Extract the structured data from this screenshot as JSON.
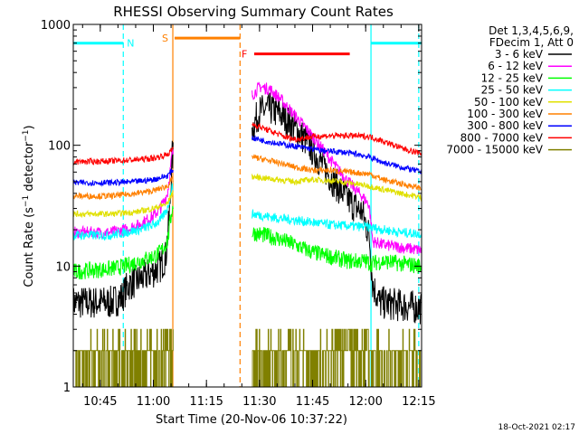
{
  "chart_data": {
    "type": "line",
    "title": "RHESSI Observing Summary Count Rates",
    "xlabel": "Start Time (20-Nov-06 10:37:22)",
    "ylabel": "Count Rate (s⁻¹ detector⁻¹)",
    "ylabel_parts": [
      "Count Rate (s",
      "−1",
      " detector",
      "−1",
      ")"
    ],
    "y_scale": "log",
    "ylim": [
      1,
      1000
    ],
    "xlim_min": [
      37.37,
      135.8
    ],
    "y_ticks": [
      {
        "v": 1,
        "label": "1"
      },
      {
        "v": 10,
        "label": "10"
      },
      {
        "v": 100,
        "label": "100"
      },
      {
        "v": 1000,
        "label": "1000"
      }
    ],
    "x_ticks": [
      {
        "v": 45,
        "label": "10:45"
      },
      {
        "v": 60,
        "label": "11:00"
      },
      {
        "v": 75,
        "label": "11:15"
      },
      {
        "v": 90,
        "label": "11:30"
      },
      {
        "v": 105,
        "label": "11:45"
      },
      {
        "v": 120,
        "label": "12:00"
      },
      {
        "v": 135,
        "label": "12:15"
      }
    ],
    "legend_header": [
      "Det 1,3,4,5,6,9,",
      "FDecim 1, Att 0"
    ],
    "legend_position": "right",
    "timestamp": "18-Oct-2021 02:17",
    "flags": [
      {
        "label": "N",
        "color": "#00ffff",
        "segments": [
          [
            37.37,
            51.5
          ],
          [
            121.5,
            135.8
          ]
        ],
        "y": 700
      },
      {
        "label": "S",
        "color": "#ff8000",
        "segments": [
          [
            66.0,
            84.5
          ]
        ],
        "y": 770
      },
      {
        "label": "F",
        "color": "#ff0000",
        "segments": [
          [
            88.5,
            115.5
          ]
        ],
        "y": 570
      }
    ],
    "boundaries": [
      {
        "t": 51.5,
        "color": "#00ffff",
        "style": "dash"
      },
      {
        "t": 121.5,
        "color": "#00ffff",
        "style": "solid"
      },
      {
        "t": 135.0,
        "color": "#00ffff",
        "style": "dash"
      },
      {
        "t": 65.5,
        "color": "#ff8000",
        "style": "solid"
      },
      {
        "t": 84.5,
        "color": "#ff8000",
        "style": "dash"
      }
    ],
    "gaps": [
      [
        65.6,
        87.8
      ]
    ],
    "series": [
      {
        "name": "3 - 6 keV",
        "color": "#000000",
        "noise": 0.14,
        "points": [
          [
            37.4,
            5
          ],
          [
            48,
            5
          ],
          [
            51,
            5.5
          ],
          [
            53,
            7
          ],
          [
            57,
            8
          ],
          [
            60,
            9
          ],
          [
            62,
            10
          ],
          [
            63.5,
            12
          ],
          [
            64.5,
            25
          ],
          [
            65.3,
            80
          ],
          [
            88,
            140
          ],
          [
            90,
            190
          ],
          [
            93,
            200
          ],
          [
            96,
            180
          ],
          [
            99,
            150
          ],
          [
            103,
            110
          ],
          [
            107,
            75
          ],
          [
            110,
            55
          ],
          [
            113,
            42
          ],
          [
            116,
            33
          ],
          [
            119,
            28
          ],
          [
            121,
            18
          ],
          [
            122,
            7
          ],
          [
            124,
            5
          ],
          [
            135.8,
            4.5
          ]
        ]
      },
      {
        "name": "6 - 12 keV",
        "color": "#ff00ff",
        "noise": 0.05,
        "points": [
          [
            37.4,
            19
          ],
          [
            48,
            19
          ],
          [
            52,
            20
          ],
          [
            56,
            22
          ],
          [
            60,
            26
          ],
          [
            62,
            30
          ],
          [
            64,
            40
          ],
          [
            65.3,
            85
          ],
          [
            88,
            260
          ],
          [
            90,
            305
          ],
          [
            93,
            290
          ],
          [
            96,
            240
          ],
          [
            99,
            190
          ],
          [
            103,
            140
          ],
          [
            107,
            100
          ],
          [
            111,
            70
          ],
          [
            115,
            50
          ],
          [
            119,
            38
          ],
          [
            121,
            32
          ],
          [
            122,
            16
          ],
          [
            125,
            15
          ],
          [
            135.8,
            13.5
          ]
        ]
      },
      {
        "name": "12 - 25 keV",
        "color": "#00ff00",
        "noise": 0.07,
        "points": [
          [
            37.4,
            9
          ],
          [
            48,
            9.5
          ],
          [
            52,
            10
          ],
          [
            56,
            11
          ],
          [
            60,
            12
          ],
          [
            62,
            13
          ],
          [
            64,
            16
          ],
          [
            65.3,
            30
          ],
          [
            88,
            19
          ],
          [
            95,
            17
          ],
          [
            100,
            15
          ],
          [
            105,
            13
          ],
          [
            110,
            12
          ],
          [
            115,
            11
          ],
          [
            120,
            11
          ],
          [
            121.5,
            10.5
          ],
          [
            125,
            11
          ],
          [
            130,
            10.5
          ],
          [
            135.8,
            10
          ]
        ]
      },
      {
        "name": "25 - 50 keV",
        "color": "#00ffff",
        "noise": 0.04,
        "points": [
          [
            37.4,
            18
          ],
          [
            48,
            18
          ],
          [
            52,
            19
          ],
          [
            56,
            20
          ],
          [
            60,
            22
          ],
          [
            62,
            24
          ],
          [
            64,
            30
          ],
          [
            65.3,
            45
          ],
          [
            88,
            27
          ],
          [
            95,
            25
          ],
          [
            100,
            24
          ],
          [
            105,
            23
          ],
          [
            110,
            22
          ],
          [
            115,
            21.5
          ],
          [
            121,
            21
          ],
          [
            125,
            20
          ],
          [
            130,
            19
          ],
          [
            135.8,
            18.5
          ]
        ]
      },
      {
        "name": "50 - 100 keV",
        "color": "#e0e000",
        "noise": 0.025,
        "points": [
          [
            37.4,
            27
          ],
          [
            48,
            27
          ],
          [
            55,
            28
          ],
          [
            60,
            30
          ],
          [
            64,
            33
          ],
          [
            65.3,
            40
          ],
          [
            88,
            55
          ],
          [
            95,
            52
          ],
          [
            100,
            50
          ],
          [
            105,
            52
          ],
          [
            110,
            51
          ],
          [
            115,
            49
          ],
          [
            121,
            46
          ],
          [
            125,
            43
          ],
          [
            130,
            40
          ],
          [
            135.8,
            37
          ]
        ]
      },
      {
        "name": "100 - 300 keV",
        "color": "#ff8000",
        "noise": 0.025,
        "points": [
          [
            37.4,
            38
          ],
          [
            48,
            38
          ],
          [
            55,
            40
          ],
          [
            60,
            42
          ],
          [
            64,
            46
          ],
          [
            65.3,
            52
          ],
          [
            88,
            80
          ],
          [
            95,
            72
          ],
          [
            100,
            66
          ],
          [
            105,
            62
          ],
          [
            110,
            62
          ],
          [
            115,
            60
          ],
          [
            121,
            58
          ],
          [
            125,
            52
          ],
          [
            130,
            48
          ],
          [
            135.8,
            44
          ]
        ]
      },
      {
        "name": "300 - 800 keV",
        "color": "#0000ff",
        "noise": 0.025,
        "points": [
          [
            37.4,
            49
          ],
          [
            48,
            49
          ],
          [
            55,
            50
          ],
          [
            60,
            52
          ],
          [
            64,
            56
          ],
          [
            65.3,
            62
          ],
          [
            88,
            115
          ],
          [
            92,
            108
          ],
          [
            98,
            100
          ],
          [
            103,
            95
          ],
          [
            108,
            90
          ],
          [
            113,
            88
          ],
          [
            118,
            84
          ],
          [
            121,
            80
          ],
          [
            125,
            72
          ],
          [
            130,
            66
          ],
          [
            135.8,
            60
          ]
        ]
      },
      {
        "name": "800 - 7000 keV",
        "color": "#ff0000",
        "noise": 0.025,
        "points": [
          [
            37.4,
            73
          ],
          [
            48,
            74
          ],
          [
            55,
            76
          ],
          [
            60,
            78
          ],
          [
            64,
            84
          ],
          [
            65.3,
            92
          ],
          [
            88,
            150
          ],
          [
            92,
            135
          ],
          [
            97,
            118
          ],
          [
            100,
            112
          ],
          [
            105,
            118
          ],
          [
            110,
            120
          ],
          [
            115,
            120
          ],
          [
            121,
            118
          ],
          [
            125,
            108
          ],
          [
            130,
            95
          ],
          [
            135.8,
            85
          ]
        ]
      },
      {
        "name": "7000 - 15000 keV",
        "color": "#808000",
        "noise": 0.0,
        "quantized": true,
        "points": [
          [
            37.4,
            2
          ],
          [
            60,
            2
          ],
          [
            64,
            3
          ],
          [
            65.3,
            3
          ],
          [
            88,
            2
          ],
          [
            100,
            2
          ],
          [
            110,
            2.5
          ],
          [
            120,
            3
          ],
          [
            121.5,
            2
          ],
          [
            135.8,
            2
          ]
        ]
      }
    ]
  }
}
